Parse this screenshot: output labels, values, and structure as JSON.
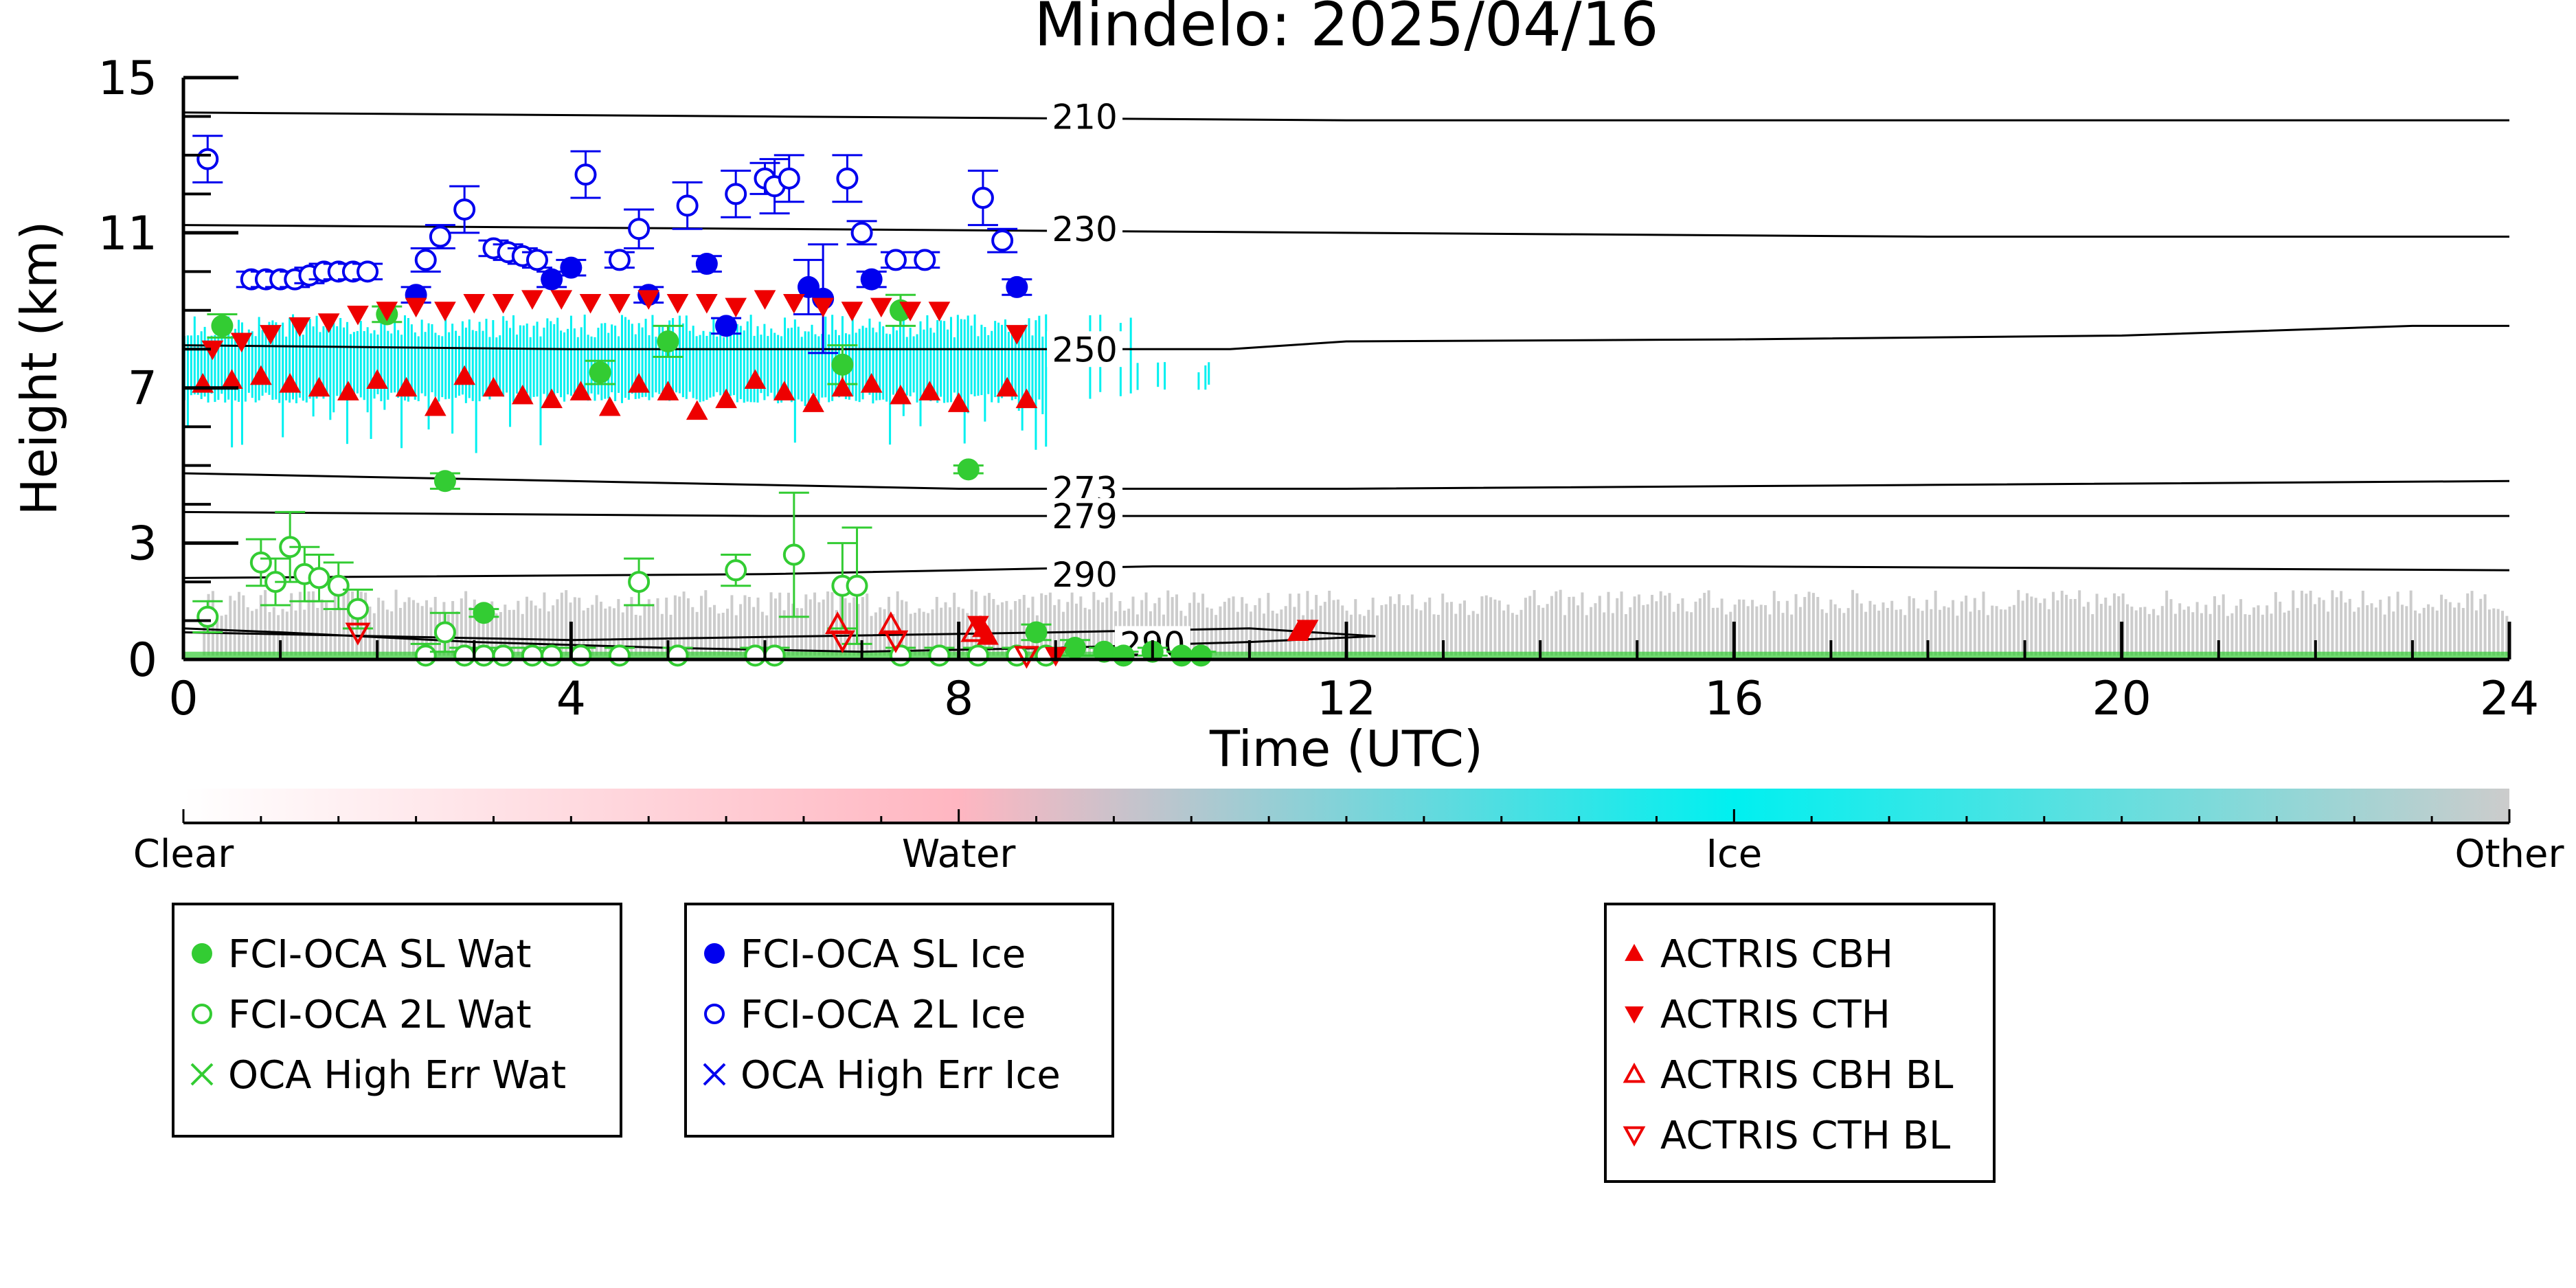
{
  "colors": {
    "water_series": "#33cc33",
    "ice_series": "#0000ee",
    "actris": "#ee0000",
    "ice_mask": "#00f0f0",
    "water_mask": "#ffb6c1",
    "other_mask": "#cccccc",
    "isotherm": "#000000"
  },
  "chart_data": {
    "type": "scatter",
    "title": "Mindelo: 2025/04/16",
    "xlabel": "Time (UTC)",
    "ylabel": "Height (km)",
    "xlim": [
      0,
      24
    ],
    "ylim": [
      0,
      15
    ],
    "xticks": [
      "0",
      "4",
      "8",
      "12",
      "16",
      "20",
      "24"
    ],
    "yticks": [
      "0",
      "3",
      "7",
      "11",
      "15"
    ],
    "grid": false,
    "colorbar": {
      "labels": [
        "Clear",
        "Water",
        "Ice",
        "Other"
      ],
      "positions": [
        0,
        1,
        2,
        3
      ]
    },
    "isotherms": [
      {
        "label": "210",
        "points": [
          [
            0,
            14.1
          ],
          [
            6,
            14.0
          ],
          [
            12,
            13.9
          ],
          [
            18,
            13.9
          ],
          [
            24,
            13.9
          ]
        ]
      },
      {
        "label": "230",
        "points": [
          [
            0,
            11.2
          ],
          [
            6,
            11.1
          ],
          [
            12,
            11.0
          ],
          [
            18,
            10.9
          ],
          [
            24,
            10.9
          ]
        ]
      },
      {
        "label": "250",
        "points": [
          [
            0,
            8.1
          ],
          [
            4,
            8.0
          ],
          [
            8,
            8.0
          ],
          [
            10.8,
            8.0
          ],
          [
            12,
            8.2
          ],
          [
            16,
            8.25
          ],
          [
            20,
            8.35
          ],
          [
            23,
            8.6
          ],
          [
            24,
            8.6
          ]
        ]
      },
      {
        "label": "273",
        "points": [
          [
            0,
            4.8
          ],
          [
            4,
            4.6
          ],
          [
            8,
            4.4
          ],
          [
            12,
            4.4
          ],
          [
            18,
            4.5
          ],
          [
            24,
            4.6
          ]
        ]
      },
      {
        "label": "279",
        "points": [
          [
            0,
            3.8
          ],
          [
            6,
            3.7
          ],
          [
            10,
            3.7
          ],
          [
            16,
            3.7
          ],
          [
            24,
            3.7
          ]
        ]
      },
      {
        "label": "290",
        "points": [
          [
            0,
            2.1
          ],
          [
            6,
            2.2
          ],
          [
            10,
            2.4
          ],
          [
            16,
            2.4
          ],
          [
            24,
            2.3
          ]
        ]
      },
      {
        "label": "290",
        "points": [
          [
            0,
            0.7
          ],
          [
            2,
            0.6
          ],
          [
            4,
            0.5
          ],
          [
            6.5,
            0.6
          ],
          [
            9,
            0.7
          ],
          [
            11,
            0.8
          ],
          [
            12.3,
            0.6
          ],
          [
            11,
            0.45
          ],
          [
            9,
            0.3
          ],
          [
            7,
            0.2
          ],
          [
            5,
            0.3
          ],
          [
            3,
            0.45
          ],
          [
            1,
            0.7
          ],
          [
            0,
            0.8
          ]
        ]
      }
    ],
    "isotherm_labels": [
      {
        "text": "210",
        "x": 9.3,
        "y": 14.0
      },
      {
        "text": "230",
        "x": 9.3,
        "y": 11.1
      },
      {
        "text": "250",
        "x": 9.3,
        "y": 8.0
      },
      {
        "text": "273",
        "x": 9.3,
        "y": 4.4
      },
      {
        "text": "279",
        "x": 9.3,
        "y": 3.7
      },
      {
        "text": "290",
        "x": 9.3,
        "y": 2.2
      },
      {
        "text": "290",
        "x": 10.0,
        "y": 0.4
      }
    ],
    "legend": [
      {
        "placement": "bottom-left",
        "entries": [
          {
            "label": "FCI-OCA SL Wat",
            "marker": "filled-circle",
            "color": "#33cc33"
          },
          {
            "label": "FCI-OCA 2L Wat",
            "marker": "open-circle",
            "color": "#33cc33"
          },
          {
            "label": "OCA High Err Wat",
            "marker": "x",
            "color": "#33cc33"
          }
        ]
      },
      {
        "placement": "bottom-center-left",
        "entries": [
          {
            "label": "FCI-OCA SL Ice",
            "marker": "filled-circle",
            "color": "#0000ee"
          },
          {
            "label": "FCI-OCA 2L Ice",
            "marker": "open-circle",
            "color": "#0000ee"
          },
          {
            "label": "OCA High Err Ice",
            "marker": "x",
            "color": "#0000ee"
          }
        ]
      },
      {
        "placement": "bottom-center-right",
        "entries": [
          {
            "label": "ACTRIS CBH",
            "marker": "triangle-up",
            "color": "#ee0000"
          },
          {
            "label": "ACTRIS CTH",
            "marker": "triangle-down",
            "color": "#ee0000"
          },
          {
            "label": "ACTRIS CBH BL",
            "marker": "open-triangle-up",
            "color": "#ee0000"
          },
          {
            "label": "ACTRIS CTH BL",
            "marker": "open-triangle-down",
            "color": "#ee0000"
          }
        ]
      }
    ],
    "series": [
      {
        "name": "FCI-OCA SL Wat",
        "marker": "filled-circle",
        "points": [
          [
            0.4,
            8.6,
            0.3
          ],
          [
            2.1,
            8.9,
            0.2
          ],
          [
            2.7,
            4.6,
            0.2
          ],
          [
            3.1,
            1.2,
            0.1
          ],
          [
            4.3,
            7.4,
            0.3
          ],
          [
            5.0,
            8.2,
            0.4
          ],
          [
            6.8,
            7.6,
            0.5
          ],
          [
            7.4,
            9.0,
            0.4
          ],
          [
            8.1,
            4.9,
            0.1
          ],
          [
            8.8,
            0.7,
            0.2
          ],
          [
            9.2,
            0.3,
            0.2
          ],
          [
            9.5,
            0.2,
            0.1
          ],
          [
            9.7,
            0.1,
            0.1
          ],
          [
            10.0,
            0.2,
            0.1
          ],
          [
            10.3,
            0.1,
            0.1
          ],
          [
            10.5,
            0.1,
            0.1
          ]
        ]
      },
      {
        "name": "FCI-OCA 2L Wat",
        "marker": "open-circle",
        "points": [
          [
            0.25,
            1.1,
            0.4
          ],
          [
            0.8,
            2.5,
            0.6
          ],
          [
            0.95,
            2.0,
            0.6
          ],
          [
            1.1,
            2.9,
            0.9
          ],
          [
            1.25,
            2.2,
            0.7
          ],
          [
            1.4,
            2.1,
            0.6
          ],
          [
            1.6,
            1.9,
            0.6
          ],
          [
            1.8,
            1.3,
            0.5
          ],
          [
            2.5,
            0.1,
            0.3
          ],
          [
            2.7,
            0.7,
            0.5
          ],
          [
            2.9,
            0.1,
            0.2
          ],
          [
            3.1,
            0.1,
            0.2
          ],
          [
            3.3,
            0.1,
            0.2
          ],
          [
            3.6,
            0.1,
            0.2
          ],
          [
            3.8,
            0.1,
            0.2
          ],
          [
            4.1,
            0.1,
            0.2
          ],
          [
            4.5,
            0.1,
            0.2
          ],
          [
            4.7,
            2.0,
            0.6
          ],
          [
            5.1,
            0.1,
            0.2
          ],
          [
            5.7,
            2.3,
            0.4
          ],
          [
            5.9,
            0.1,
            0.2
          ],
          [
            6.1,
            0.1,
            0.2
          ],
          [
            6.3,
            2.7,
            1.6
          ],
          [
            6.8,
            1.9,
            1.1
          ],
          [
            6.95,
            1.9,
            1.5
          ],
          [
            7.4,
            0.1,
            0.2
          ],
          [
            7.8,
            0.1,
            0.2
          ],
          [
            8.2,
            0.1,
            0.2
          ],
          [
            8.6,
            0.1,
            0.2
          ],
          [
            8.9,
            0.1,
            0.2
          ]
        ]
      },
      {
        "name": "OCA High Err Wat",
        "marker": "x",
        "points": []
      },
      {
        "name": "FCI-OCA SL Ice",
        "marker": "filled-circle",
        "points": [
          [
            2.4,
            9.4,
            0.2
          ],
          [
            3.8,
            9.8,
            0.2
          ],
          [
            4.0,
            10.1,
            0.2
          ],
          [
            4.8,
            9.4,
            0.2
          ],
          [
            5.4,
            10.2,
            0.2
          ],
          [
            5.6,
            8.6,
            0.2
          ],
          [
            6.45,
            9.6,
            0.7
          ],
          [
            6.6,
            9.3,
            1.4
          ],
          [
            7.1,
            9.8,
            0.2
          ],
          [
            8.6,
            9.6,
            0.2
          ]
        ]
      },
      {
        "name": "FCI-OCA 2L Ice",
        "marker": "open-circle",
        "points": [
          [
            0.25,
            12.9,
            0.6
          ],
          [
            0.7,
            9.8,
            0.2
          ],
          [
            0.85,
            9.8,
            0.2
          ],
          [
            1.0,
            9.8,
            0.2
          ],
          [
            1.15,
            9.8,
            0.2
          ],
          [
            1.3,
            9.9,
            0.2
          ],
          [
            1.45,
            10.0,
            0.2
          ],
          [
            1.6,
            10.0,
            0.2
          ],
          [
            1.75,
            10.0,
            0.2
          ],
          [
            1.9,
            10.0,
            0.2
          ],
          [
            2.5,
            10.3,
            0.3
          ],
          [
            2.65,
            10.9,
            0.3
          ],
          [
            2.9,
            11.6,
            0.6
          ],
          [
            3.2,
            10.6,
            0.2
          ],
          [
            3.35,
            10.5,
            0.2
          ],
          [
            3.5,
            10.4,
            0.2
          ],
          [
            3.65,
            10.3,
            0.2
          ],
          [
            4.15,
            12.5,
            0.6
          ],
          [
            4.5,
            10.3,
            0.2
          ],
          [
            4.7,
            11.1,
            0.5
          ],
          [
            5.2,
            11.7,
            0.6
          ],
          [
            5.7,
            12.0,
            0.6
          ],
          [
            6.0,
            12.4,
            0.4
          ],
          [
            6.1,
            12.2,
            0.7
          ],
          [
            6.25,
            12.4,
            0.6
          ],
          [
            6.85,
            12.4,
            0.6
          ],
          [
            7.0,
            11.0,
            0.3
          ],
          [
            7.35,
            10.3,
            0.2
          ],
          [
            7.65,
            10.3,
            0.2
          ],
          [
            8.25,
            11.9,
            0.7
          ],
          [
            8.45,
            10.8,
            0.3
          ]
        ]
      },
      {
        "name": "OCA High Err Ice",
        "marker": "x",
        "points": []
      },
      {
        "name": "ACTRIS CBH",
        "marker": "triangle-up",
        "points": [
          [
            0.2,
            7.1
          ],
          [
            0.5,
            7.2
          ],
          [
            0.8,
            7.3
          ],
          [
            1.1,
            7.1
          ],
          [
            1.4,
            7.0
          ],
          [
            1.7,
            6.9
          ],
          [
            2.0,
            7.2
          ],
          [
            2.3,
            7.0
          ],
          [
            2.6,
            6.5
          ],
          [
            2.9,
            7.3
          ],
          [
            3.2,
            7.0
          ],
          [
            3.5,
            6.8
          ],
          [
            3.8,
            6.7
          ],
          [
            4.1,
            6.9
          ],
          [
            4.4,
            6.5
          ],
          [
            4.7,
            7.1
          ],
          [
            5.0,
            6.9
          ],
          [
            5.3,
            6.4
          ],
          [
            5.6,
            6.7
          ],
          [
            5.9,
            7.2
          ],
          [
            6.2,
            6.9
          ],
          [
            6.5,
            6.6
          ],
          [
            6.8,
            7.0
          ],
          [
            7.1,
            7.1
          ],
          [
            7.4,
            6.8
          ],
          [
            7.7,
            6.9
          ],
          [
            8.0,
            6.6
          ],
          [
            8.25,
            0.8
          ],
          [
            8.3,
            0.6
          ],
          [
            8.5,
            7.0
          ],
          [
            8.7,
            6.7
          ],
          [
            11.5,
            0.7
          ]
        ]
      },
      {
        "name": "ACTRIS CTH",
        "marker": "triangle-down",
        "points": [
          [
            0.3,
            8.0
          ],
          [
            0.6,
            8.2
          ],
          [
            0.9,
            8.4
          ],
          [
            1.2,
            8.6
          ],
          [
            1.5,
            8.7
          ],
          [
            1.8,
            8.9
          ],
          [
            2.1,
            9.0
          ],
          [
            2.4,
            9.1
          ],
          [
            2.7,
            9.0
          ],
          [
            3.0,
            9.2
          ],
          [
            3.3,
            9.2
          ],
          [
            3.6,
            9.3
          ],
          [
            3.9,
            9.3
          ],
          [
            4.2,
            9.2
          ],
          [
            4.5,
            9.2
          ],
          [
            4.8,
            9.3
          ],
          [
            5.1,
            9.2
          ],
          [
            5.4,
            9.2
          ],
          [
            5.7,
            9.1
          ],
          [
            6.0,
            9.3
          ],
          [
            6.3,
            9.2
          ],
          [
            6.6,
            9.1
          ],
          [
            6.9,
            9.0
          ],
          [
            7.2,
            9.1
          ],
          [
            7.5,
            9.0
          ],
          [
            7.8,
            9.0
          ],
          [
            8.6,
            8.4
          ],
          [
            8.2,
            0.9
          ],
          [
            9.0,
            0.1
          ],
          [
            11.6,
            0.8
          ]
        ]
      },
      {
        "name": "ACTRIS CBH BL",
        "marker": "open-triangle-up",
        "points": [
          [
            6.75,
            0.9
          ],
          [
            7.3,
            0.9
          ],
          [
            8.15,
            0.7
          ]
        ]
      },
      {
        "name": "ACTRIS CTH BL",
        "marker": "open-triangle-down",
        "points": [
          [
            1.8,
            0.7
          ],
          [
            6.8,
            0.5
          ],
          [
            7.35,
            0.5
          ],
          [
            8.7,
            0.1
          ]
        ]
      }
    ],
    "mask": {
      "ice_layer": {
        "x_range": [
          0,
          10.6
        ],
        "base": 6.9,
        "top": 8.9
      },
      "other_layer": {
        "x_range": [
          0.2,
          24
        ],
        "base": 0.1,
        "top": 1.8
      },
      "water_near_surface": {
        "x_range": [
          0,
          24
        ],
        "height": 0.2
      }
    }
  }
}
